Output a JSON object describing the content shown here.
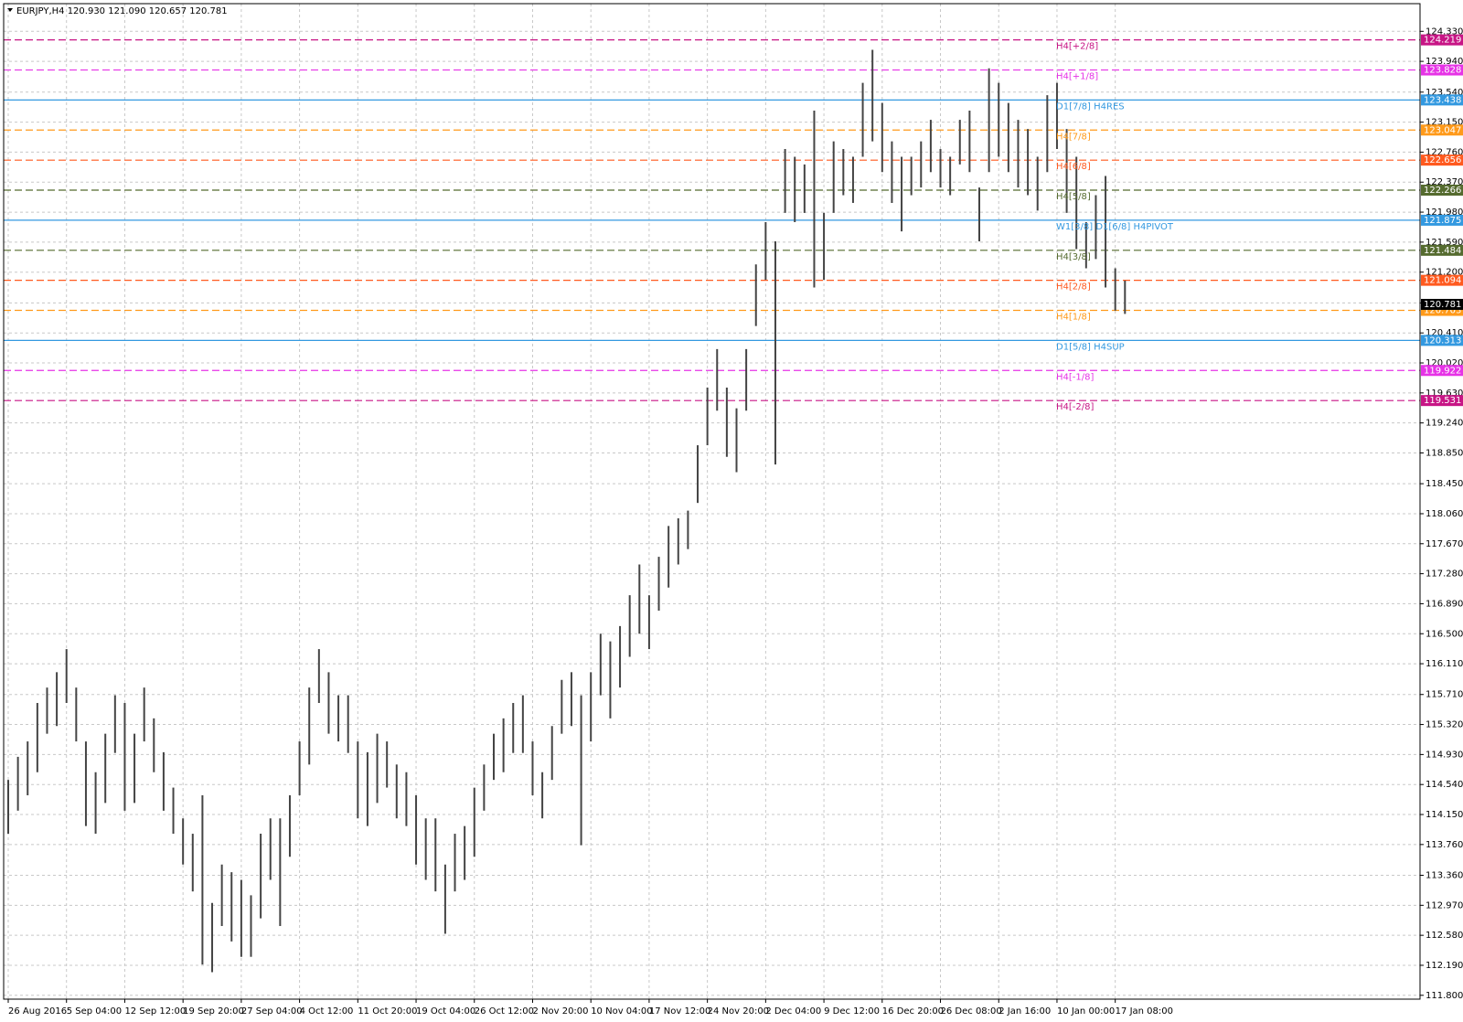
{
  "chart_data": {
    "type": "range",
    "header": "EURJPY,H4  120.930 121.090 120.657 120.781",
    "categories": [
      "26 Aug 2016",
      null,
      null,
      null,
      null,
      null,
      "5 Sep 04:00",
      null,
      null,
      null,
      null,
      null,
      "12 Sep 12:00",
      null,
      null,
      null,
      null,
      null,
      "19 Sep 20:00",
      null,
      null,
      null,
      null,
      null,
      "27 Sep 04:00",
      null,
      null,
      null,
      null,
      null,
      "4 Oct 12:00",
      null,
      null,
      null,
      null,
      null,
      "11 Oct 20:00",
      null,
      null,
      null,
      null,
      null,
      "19 Oct 04:00",
      null,
      null,
      null,
      null,
      null,
      "26 Oct 12:00",
      null,
      null,
      null,
      null,
      null,
      "2 Nov 20:00",
      null,
      null,
      null,
      null,
      null,
      "10 Nov 04:00",
      null,
      null,
      null,
      null,
      null,
      "17 Nov 12:00",
      null,
      null,
      null,
      null,
      null,
      "24 Nov 20:00",
      null,
      null,
      null,
      null,
      null,
      "2 Dec 04:00",
      null,
      null,
      null,
      null,
      null,
      "9 Dec 12:00",
      null,
      null,
      null,
      null,
      null,
      "16 Dec 20:00",
      null,
      null,
      null,
      null,
      null,
      "26 Dec 08:00",
      null,
      null,
      null,
      null,
      null,
      "2 Jan 16:00",
      null,
      null,
      null,
      null,
      null,
      "10 Jan 00:00",
      null,
      null,
      null,
      null,
      null,
      "17 Jan 08:00",
      null
    ],
    "high": [
      114.6,
      114.9,
      115.1,
      115.6,
      115.8,
      116.0,
      116.3,
      115.8,
      115.1,
      114.7,
      115.2,
      115.7,
      115.6,
      115.2,
      115.8,
      115.4,
      114.96,
      114.5,
      114.1,
      113.9,
      114.4,
      113.0,
      113.5,
      113.4,
      113.3,
      113.1,
      113.9,
      114.1,
      114.1,
      114.4,
      115.1,
      115.8,
      116.3,
      116.0,
      115.7,
      115.7,
      115.1,
      114.96,
      115.2,
      115.1,
      114.8,
      114.7,
      114.4,
      114.1,
      114.1,
      113.5,
      113.9,
      114.0,
      114.5,
      114.8,
      115.2,
      115.4,
      115.6,
      115.7,
      115.1,
      114.7,
      115.3,
      115.9,
      116.0,
      115.7,
      116.0,
      116.5,
      116.4,
      116.6,
      117.0,
      117.4,
      117.0,
      117.5,
      117.9,
      118.0,
      118.1,
      118.95,
      119.7,
      120.2,
      119.7,
      119.43,
      120.2,
      121.3,
      121.85,
      121.6,
      122.8,
      122.7,
      122.6,
      123.3,
      121.97,
      122.9,
      122.8,
      122.7,
      123.66,
      124.09,
      123.4,
      122.9,
      122.7,
      122.7,
      122.9,
      123.18,
      122.8,
      122.7,
      123.18,
      123.3,
      122.3,
      123.85,
      123.66,
      123.4,
      123.18,
      123.06,
      122.7,
      123.5,
      123.66,
      123.06,
      122.7,
      121.85,
      122.2,
      122.45,
      121.25,
      121.09
    ],
    "low": [
      113.9,
      114.2,
      114.4,
      114.7,
      115.2,
      115.3,
      115.6,
      115.1,
      114.0,
      113.9,
      114.3,
      114.95,
      114.2,
      114.3,
      115.1,
      114.7,
      114.2,
      113.9,
      113.5,
      113.15,
      112.2,
      112.1,
      112.7,
      112.5,
      112.3,
      112.3,
      112.8,
      113.3,
      112.7,
      113.6,
      114.4,
      114.8,
      115.6,
      115.2,
      115.1,
      114.95,
      114.1,
      114.0,
      114.3,
      114.5,
      114.1,
      114.0,
      113.5,
      113.3,
      113.15,
      112.6,
      113.15,
      113.3,
      113.6,
      114.2,
      114.6,
      114.7,
      114.95,
      114.95,
      114.4,
      114.1,
      114.6,
      115.2,
      115.3,
      113.75,
      115.1,
      115.7,
      115.4,
      115.8,
      116.2,
      116.5,
      116.3,
      116.8,
      117.1,
      117.4,
      117.6,
      118.2,
      118.95,
      119.4,
      118.8,
      118.6,
      119.4,
      120.5,
      121.1,
      118.7,
      121.97,
      121.85,
      121.97,
      121.0,
      121.1,
      121.97,
      122.2,
      122.1,
      122.7,
      122.9,
      122.5,
      122.1,
      121.73,
      122.2,
      122.3,
      122.5,
      122.3,
      122.2,
      122.6,
      122.5,
      121.6,
      122.5,
      122.7,
      122.5,
      122.3,
      122.2,
      122.0,
      122.5,
      122.8,
      121.97,
      121.5,
      121.25,
      121.37,
      121.0,
      120.7,
      120.657
    ],
    "color": "#444444",
    "ylim": [
      111.75,
      124.69
    ],
    "yticks": [
      {
        "value": 111.8,
        "label": "111.800"
      },
      {
        "value": 112.19,
        "label": "112.190"
      },
      {
        "value": 112.58,
        "label": "112.580"
      },
      {
        "value": 112.97,
        "label": "112.970"
      },
      {
        "value": 113.36,
        "label": "113.360"
      },
      {
        "value": 113.76,
        "label": "113.760"
      },
      {
        "value": 114.15,
        "label": "114.150"
      },
      {
        "value": 114.54,
        "label": "114.540"
      },
      {
        "value": 114.93,
        "label": "114.930"
      },
      {
        "value": 115.32,
        "label": "115.320"
      },
      {
        "value": 115.71,
        "label": "115.710"
      },
      {
        "value": 116.11,
        "label": "116.110"
      },
      {
        "value": 116.5,
        "label": "116.500"
      },
      {
        "value": 116.89,
        "label": "116.890"
      },
      {
        "value": 117.28,
        "label": "117.280"
      },
      {
        "value": 117.67,
        "label": "117.670"
      },
      {
        "value": 118.06,
        "label": "118.060"
      },
      {
        "value": 118.45,
        "label": "118.450"
      },
      {
        "value": 118.85,
        "label": "118.850"
      },
      {
        "value": 119.24,
        "label": "119.240"
      },
      {
        "value": 119.63,
        "label": "119.630"
      },
      {
        "value": 120.02,
        "label": "120.020"
      },
      {
        "value": 120.41,
        "label": "120.410"
      },
      {
        "value": 120.8,
        "label": "120.800"
      },
      {
        "value": 121.2,
        "label": "121.200"
      },
      {
        "value": 121.59,
        "label": "121.590"
      },
      {
        "value": 121.98,
        "label": "121.980"
      },
      {
        "value": 122.37,
        "label": "122.370"
      },
      {
        "value": 122.76,
        "label": "122.760"
      },
      {
        "value": 123.15,
        "label": "123.150"
      },
      {
        "value": 123.54,
        "label": "123.540"
      },
      {
        "value": 123.94,
        "label": "123.940"
      },
      {
        "value": 124.33,
        "label": "124.330"
      }
    ],
    "grid": true,
    "levels": [
      {
        "value": 124.219,
        "label": "H4[+2/8]",
        "color": "#c71585",
        "dashed": true
      },
      {
        "value": 123.828,
        "label": "H4[+1/8]",
        "color": "#e633e6",
        "dashed": true
      },
      {
        "value": 123.438,
        "label": "D1[7/8] H4RES",
        "color": "#3399e0",
        "dashed": false
      },
      {
        "value": 123.047,
        "label": "H4[7/8]",
        "color": "#ff9a1a",
        "dashed": true
      },
      {
        "value": 122.656,
        "label": "H4[6/8]",
        "color": "#ff5a1f",
        "dashed": true
      },
      {
        "value": 122.266,
        "label": "H4[5/8]",
        "color": "#556b2f",
        "dashed": true
      },
      {
        "value": 121.875,
        "label": "W1[3/8] D1[6/8] H4PIVOT",
        "color": "#3399e0",
        "dashed": false
      },
      {
        "value": 121.484,
        "label": "H4[3/8]",
        "color": "#556b2f",
        "dashed": true
      },
      {
        "value": 121.094,
        "label": "H4[2/8]",
        "color": "#ff5a1f",
        "dashed": true
      },
      {
        "value": 120.703,
        "label": "H4[1/8]",
        "color": "#ff9a1a",
        "dashed": true
      },
      {
        "value": 120.313,
        "label": "D1[5/8] H4SUP",
        "color": "#3399e0",
        "dashed": false
      },
      {
        "value": 119.922,
        "label": "H4[-1/8]",
        "color": "#e633e6",
        "dashed": true
      },
      {
        "value": 119.531,
        "label": "H4[-2/8]",
        "color": "#c71585",
        "dashed": true
      }
    ],
    "price": 120.781
  }
}
